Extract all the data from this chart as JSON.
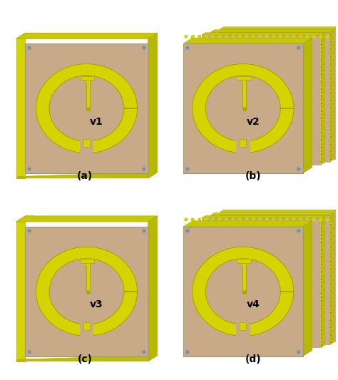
{
  "background_color": "#ffffff",
  "board_color": "#c8aa88",
  "yellow": "#d4d400",
  "yellow_dark": "#a8a800",
  "yellow_mid": "#bcbc00",
  "side_face_color": "#b8b800",
  "top_face_color": "#c8c800",
  "right_dark": "#909000",
  "gray_side": "#888880",
  "screw_color": "#aaaaaa",
  "screw_dark": "#888888",
  "text_color": "#111111",
  "subplot_labels": [
    "(a)",
    "(b)",
    "(c)",
    "(d)"
  ],
  "version_labels": [
    "v1",
    "v2",
    "v3",
    "v4"
  ],
  "figsize": [
    4.74,
    5.33
  ],
  "dpi": 100
}
